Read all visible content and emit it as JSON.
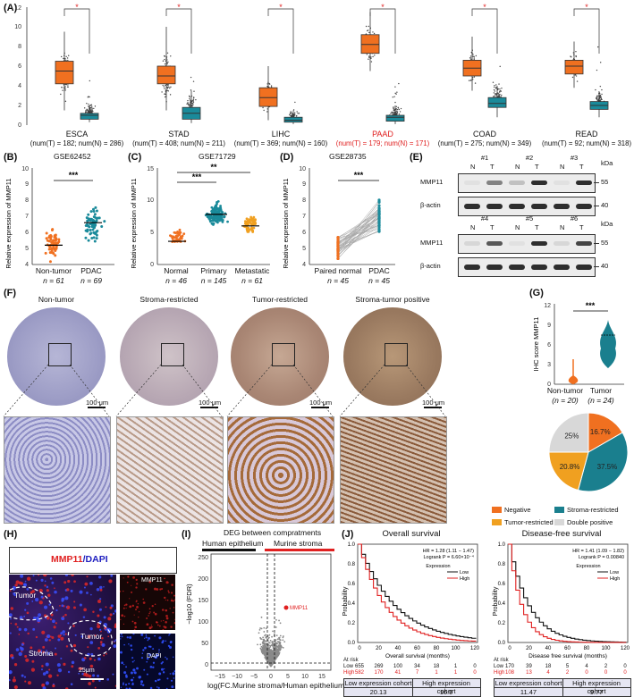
{
  "panel_labels": {
    "A": "(A)",
    "B": "(B)",
    "C": "(C)",
    "D": "(D)",
    "E": "(E)",
    "F": "(F)",
    "G": "(G)",
    "H": "(H)",
    "I": "(I)",
    "J": "(J)"
  },
  "panel_a": {
    "significance": "*",
    "cancers": [
      {
        "name": "ESCA",
        "n": "(num(T) = 182; num(N) = 286)",
        "highlight": false
      },
      {
        "name": "STAD",
        "n": "(num(T) = 408; num(N) = 211)",
        "highlight": false
      },
      {
        "name": "LIHC",
        "n": "(num(T) = 369; num(N) = 160)",
        "highlight": false
      },
      {
        "name": "PAAD",
        "n": "(num(T) = 179; num(N) = 171)",
        "highlight": true
      },
      {
        "name": "COAD",
        "n": "(num(T) = 275; num(N) = 349)",
        "highlight": false
      },
      {
        "name": "READ",
        "n": "(num(T) = 92; num(N) = 318)",
        "highlight": false
      }
    ]
  },
  "panel_b": {
    "title": "GSE62452",
    "ylabel": "Relative expression of MMP11",
    "sig": "***",
    "groups": [
      {
        "name": "Non-tumor",
        "n": "n = 61"
      },
      {
        "name": "PDAC",
        "n": "n = 69"
      }
    ]
  },
  "panel_c": {
    "title": "GSE71729",
    "ylabel": "Relative expression of MMP11",
    "sig1": "***",
    "sig2": "**",
    "groups": [
      {
        "name": "Normal",
        "n": "n = 46"
      },
      {
        "name": "Primary",
        "n": "n = 145"
      },
      {
        "name": "Metastatic",
        "n": "n = 61"
      }
    ]
  },
  "panel_d": {
    "title": "GSE28735",
    "ylabel": "Relative expression of MMP11",
    "sig": "***",
    "groups": [
      {
        "name": "Paired normal",
        "n": "n = 45"
      },
      {
        "name": "PDAC",
        "n": "n = 45"
      }
    ]
  },
  "panel_e": {
    "unit": "kDa",
    "nt": [
      "N",
      "T"
    ],
    "top_samples": [
      "#1",
      "#2",
      "#3"
    ],
    "bottom_samples": [
      "#4",
      "#5",
      "#6"
    ],
    "rows": [
      {
        "label": "MMP11",
        "kda": "55"
      },
      {
        "label": "β-actin",
        "kda": "40"
      }
    ]
  },
  "panel_f": {
    "titles": [
      "Non-tumor",
      "Stroma-restricted",
      "Tumor-restricted",
      "Stroma-tumor positive"
    ],
    "scale": "100 μm"
  },
  "panel_g": {
    "ylabel": "IHC score MMP11",
    "sig": "***",
    "groups": [
      {
        "name": "Non-tumor",
        "n": "(n = 20)"
      },
      {
        "name": "Tumor",
        "n": "(n = 24)"
      }
    ],
    "pie": [
      {
        "label": "16.7%",
        "color": "#f07020",
        "value": 16.7
      },
      {
        "label": "37.5%",
        "color": "#1a7f8e",
        "value": 37.5
      },
      {
        "label": "20.8%",
        "color": "#f0a020",
        "value": 20.8
      },
      {
        "label": "25%",
        "color": "#d8d8d8",
        "value": 25
      }
    ],
    "legend": [
      {
        "label": "Negative",
        "color": "#f07020"
      },
      {
        "label": "Stroma-restricted",
        "color": "#1a7f8e"
      },
      {
        "label": "Tumor-restricted",
        "color": "#f0a020"
      },
      {
        "label": "Double positive",
        "color": "#d8d8d8"
      }
    ]
  },
  "panel_h": {
    "title_a": "MMP11",
    "title_b": "/DAPI",
    "labels": [
      "Tumor",
      "Tumor",
      "Stroma"
    ],
    "side": [
      "MMP11",
      "DAPI"
    ],
    "scale": "25μm"
  },
  "panel_i": {
    "title": "DEG between compratments",
    "left": "Human epithelium",
    "right": "Murine stroma",
    "ylabel": "−log10 (FDR)",
    "xlabel": "log(FC.Murine stroma/Human epithelium)",
    "point": "MMP11"
  },
  "panel_j": {
    "os": {
      "title": "Overall survival",
      "hr": "HR = 1.28 (1.11 − 1.47)",
      "logrank": "Logrank P = 6.60×10⁻⁴",
      "xlabel": "Overall survival (months)",
      "risk_low": [
        "655",
        "269",
        "100",
        "34",
        "18",
        "1",
        "0"
      ],
      "risk_high": [
        "582",
        "170",
        "41",
        "7",
        "1",
        "1",
        "0"
      ],
      "cohort_low": "20.13",
      "cohort_high": "16.9"
    },
    "dfs": {
      "title": "Disease-free survival",
      "hr": "HR = 1.41 (1.09 − 1.82)",
      "logrank": "Logrank P = 0.00840",
      "xlabel": "Disease free survival (months)",
      "risk_low": [
        "170",
        "39",
        "18",
        "5",
        "4",
        "2",
        "0"
      ],
      "risk_high": [
        "108",
        "13",
        "4",
        "2",
        "0",
        "0",
        "0"
      ],
      "cohort_low": "11.47",
      "cohort_high": "9.77"
    },
    "expr": "Expression",
    "low": "Low",
    "high": "High",
    "atrisk": "At risk",
    "ylabel": "Probability",
    "cohort_low_label": "Low expression cohort",
    "cohort_high_label": "High expression cohort"
  },
  "colors": {
    "tumor": "#f07020",
    "normal": "#1a8a9a",
    "red": "#e02020"
  }
}
